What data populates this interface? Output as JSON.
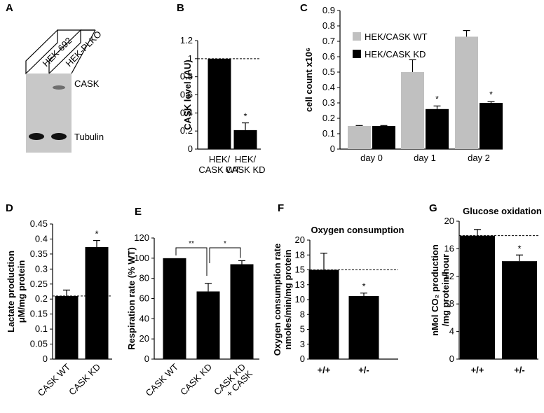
{
  "panel_letters": [
    "A",
    "B",
    "C",
    "D",
    "E",
    "F",
    "G"
  ],
  "blot": {
    "lanes": [
      "HEK-692",
      "HEK-PLKO"
    ],
    "bands": [
      "CASK",
      "Tubulin"
    ]
  },
  "colors": {
    "bar_dark": "#000000",
    "bar_light": "#c0c0c0",
    "blot_bg": "#c8c8c8"
  },
  "chart_data": [
    {
      "panel": "B",
      "type": "bar",
      "categories": [
        "HEK/\nCASK WT",
        "HEK/\nCASK KD"
      ],
      "values": [
        1.0,
        0.21
      ],
      "errors": [
        0,
        0.08
      ],
      "significance": [
        "",
        "*"
      ],
      "ylabel": "CASK level (AU)",
      "ylim": [
        0,
        1.2
      ],
      "yticks": [
        "0",
        "0.2",
        "0.4",
        "0.6",
        "0.8",
        "1",
        "1.2"
      ],
      "reference_line": 1.0
    },
    {
      "panel": "C",
      "type": "bar",
      "categories": [
        "day 0",
        "day 1",
        "day 2"
      ],
      "series": [
        {
          "name": "HEK/CASK WT",
          "values": [
            0.15,
            0.5,
            0.73
          ],
          "errors": [
            0.003,
            0.08,
            0.04
          ],
          "color": "#c0c0c0",
          "significance": [
            "",
            "",
            ""
          ]
        },
        {
          "name": "HEK/CASK KD",
          "values": [
            0.15,
            0.26,
            0.3
          ],
          "errors": [
            0.003,
            0.02,
            0.008
          ],
          "color": "#000000",
          "significance": [
            "",
            "*",
            "*"
          ]
        }
      ],
      "ylabel": "cell count x10⁶",
      "ylim": [
        0,
        0.9
      ],
      "yticks": [
        "0",
        "0.1",
        "0.2",
        "0.3",
        "0.4",
        "0.5",
        "0.6",
        "0.7",
        "0.8",
        "0.9"
      ]
    },
    {
      "panel": "D",
      "type": "bar",
      "categories": [
        "CASK WT",
        "CASK KD"
      ],
      "values": [
        0.21,
        0.373
      ],
      "errors": [
        0.02,
        0.022
      ],
      "significance": [
        "",
        "*"
      ],
      "ylabel_line1": "Lactate production",
      "ylabel_line2": "μM/mg protein",
      "ylim": [
        0,
        0.45
      ],
      "yticks": [
        "0",
        "0.05",
        "0.1",
        "0.15",
        "0.2",
        "0.25",
        "0.3",
        "0.35",
        "0.4",
        "0.45"
      ],
      "reference_line": 0.21
    },
    {
      "panel": "E",
      "type": "bar",
      "categories": [
        "CASK WT",
        "CASK KD",
        "CASK KD\n+ CASK"
      ],
      "values": [
        100,
        67,
        94
      ],
      "errors": [
        0,
        8,
        3.5
      ],
      "brackets": [
        {
          "from": 0,
          "to": 1,
          "label": "**"
        },
        {
          "from": 1,
          "to": 2,
          "label": "*"
        }
      ],
      "ylabel": "Respiration rate (% WT)",
      "ylim": [
        0,
        120
      ],
      "yticks": [
        "0",
        "20",
        "40",
        "60",
        "80",
        "100",
        "120"
      ]
    },
    {
      "panel": "F",
      "type": "bar",
      "title": "Oxygen consumption",
      "categories": [
        "+/+",
        "+/-"
      ],
      "values": [
        15.0,
        10.6
      ],
      "errors": [
        2.8,
        0.5
      ],
      "significance": [
        "",
        "*"
      ],
      "ylabel_line1": "Oxygen consumption rate",
      "ylabel_line2": "nmoles/min/mg protein",
      "ylim": [
        0,
        20
      ],
      "yticks": [
        "0",
        "3",
        "5",
        "8",
        "10",
        "13",
        "15",
        "18",
        "20"
      ],
      "reference_line": 15.0
    },
    {
      "panel": "G",
      "type": "bar",
      "title": "Glucose oxidation",
      "categories": [
        "+/+",
        "+/-"
      ],
      "values": [
        17.9,
        14.2
      ],
      "errors": [
        0.9,
        0.9
      ],
      "significance": [
        "",
        "*"
      ],
      "ylabel_line1": "nMol CO₂ production",
      "ylabel_line2": "/mg protein/hour",
      "ylim": [
        0,
        20
      ],
      "yticks": [
        "0",
        "4",
        "8",
        "12",
        "16",
        "20"
      ],
      "reference_line": 17.9
    }
  ]
}
